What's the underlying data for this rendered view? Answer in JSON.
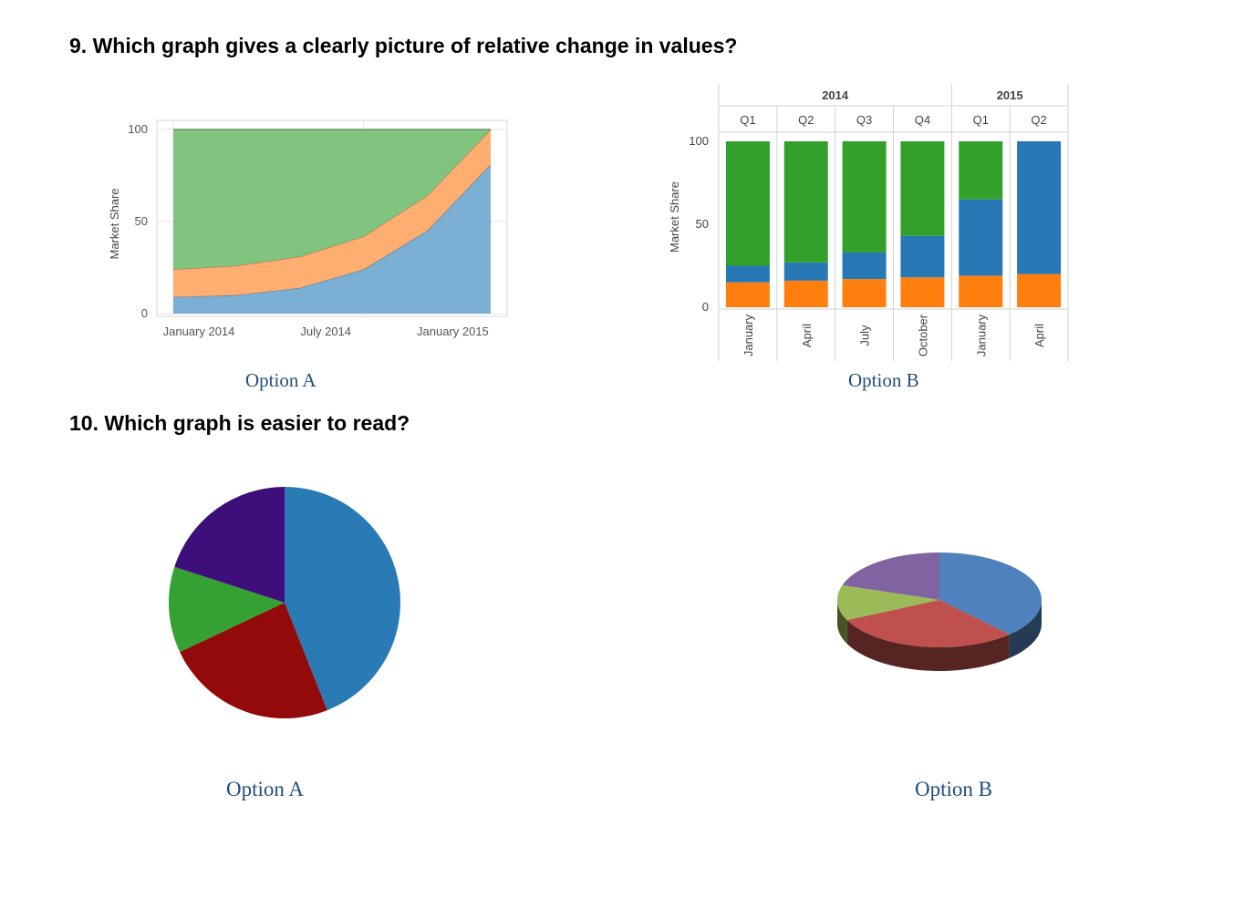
{
  "questions": {
    "q9": "9. Which graph gives a clearly picture of relative change in values?",
    "q10": "10. Which graph is easier to read?"
  },
  "options": {
    "q9_a": "Option A",
    "q9_b": "Option B",
    "q10_a": "Option A",
    "q10_b": "Option B"
  },
  "chart_data": [
    {
      "id": "q9-option-a",
      "type": "area",
      "stacked": true,
      "ylabel": "Market Share",
      "ylim": [
        0,
        100
      ],
      "yticks": [
        0,
        50,
        100
      ],
      "xtick_labels": [
        "January 2014",
        "July 2014",
        "January 2015"
      ],
      "x": [
        "2014-01",
        "2014-04",
        "2014-07",
        "2014-10",
        "2015-01",
        "2015-04"
      ],
      "series": [
        {
          "values": [
            9,
            10,
            14,
            24,
            45,
            81
          ],
          "color": "#7bafd4"
        },
        {
          "values": [
            15,
            16,
            17,
            18,
            19,
            19
          ],
          "color": "#ffae72"
        },
        {
          "values": [
            76,
            74,
            69,
            58,
            36,
            0
          ],
          "color": "#80c47f"
        }
      ],
      "grid": true
    },
    {
      "id": "q9-option-b",
      "type": "bar",
      "stacked": true,
      "ylabel": "Market Share",
      "ylim": [
        0,
        100
      ],
      "yticks": [
        0,
        50,
        100
      ],
      "years": [
        {
          "label": "2014",
          "span": 4
        },
        {
          "label": "2015",
          "span": 2
        }
      ],
      "quarters": [
        "Q1",
        "Q2",
        "Q3",
        "Q4",
        "Q1",
        "Q2"
      ],
      "categories": [
        "January",
        "April",
        "July",
        "October",
        "January",
        "April"
      ],
      "series": [
        {
          "values": [
            15,
            16,
            17,
            18,
            19,
            20
          ],
          "color": "#ff7f0e"
        },
        {
          "values": [
            10,
            11,
            16,
            25,
            46,
            80
          ],
          "color": "#2878b5"
        },
        {
          "values": [
            75,
            73,
            67,
            57,
            35,
            0
          ],
          "color": "#33a02c"
        }
      ]
    },
    {
      "id": "q10-option-a",
      "type": "pie",
      "slices": [
        {
          "value": 44,
          "color": "#2a7ab5"
        },
        {
          "value": 24,
          "color": "#930a0a"
        },
        {
          "value": 12,
          "color": "#35a132"
        },
        {
          "value": 20,
          "color": "#3e0e7a"
        }
      ]
    },
    {
      "id": "q10-option-b",
      "type": "pie",
      "style": "3d",
      "slices": [
        {
          "value": 38,
          "color": "#4f81bd"
        },
        {
          "value": 30,
          "color": "#c0504d"
        },
        {
          "value": 12,
          "color": "#9bbb59"
        },
        {
          "value": 20,
          "color": "#8064a2"
        }
      ]
    }
  ]
}
